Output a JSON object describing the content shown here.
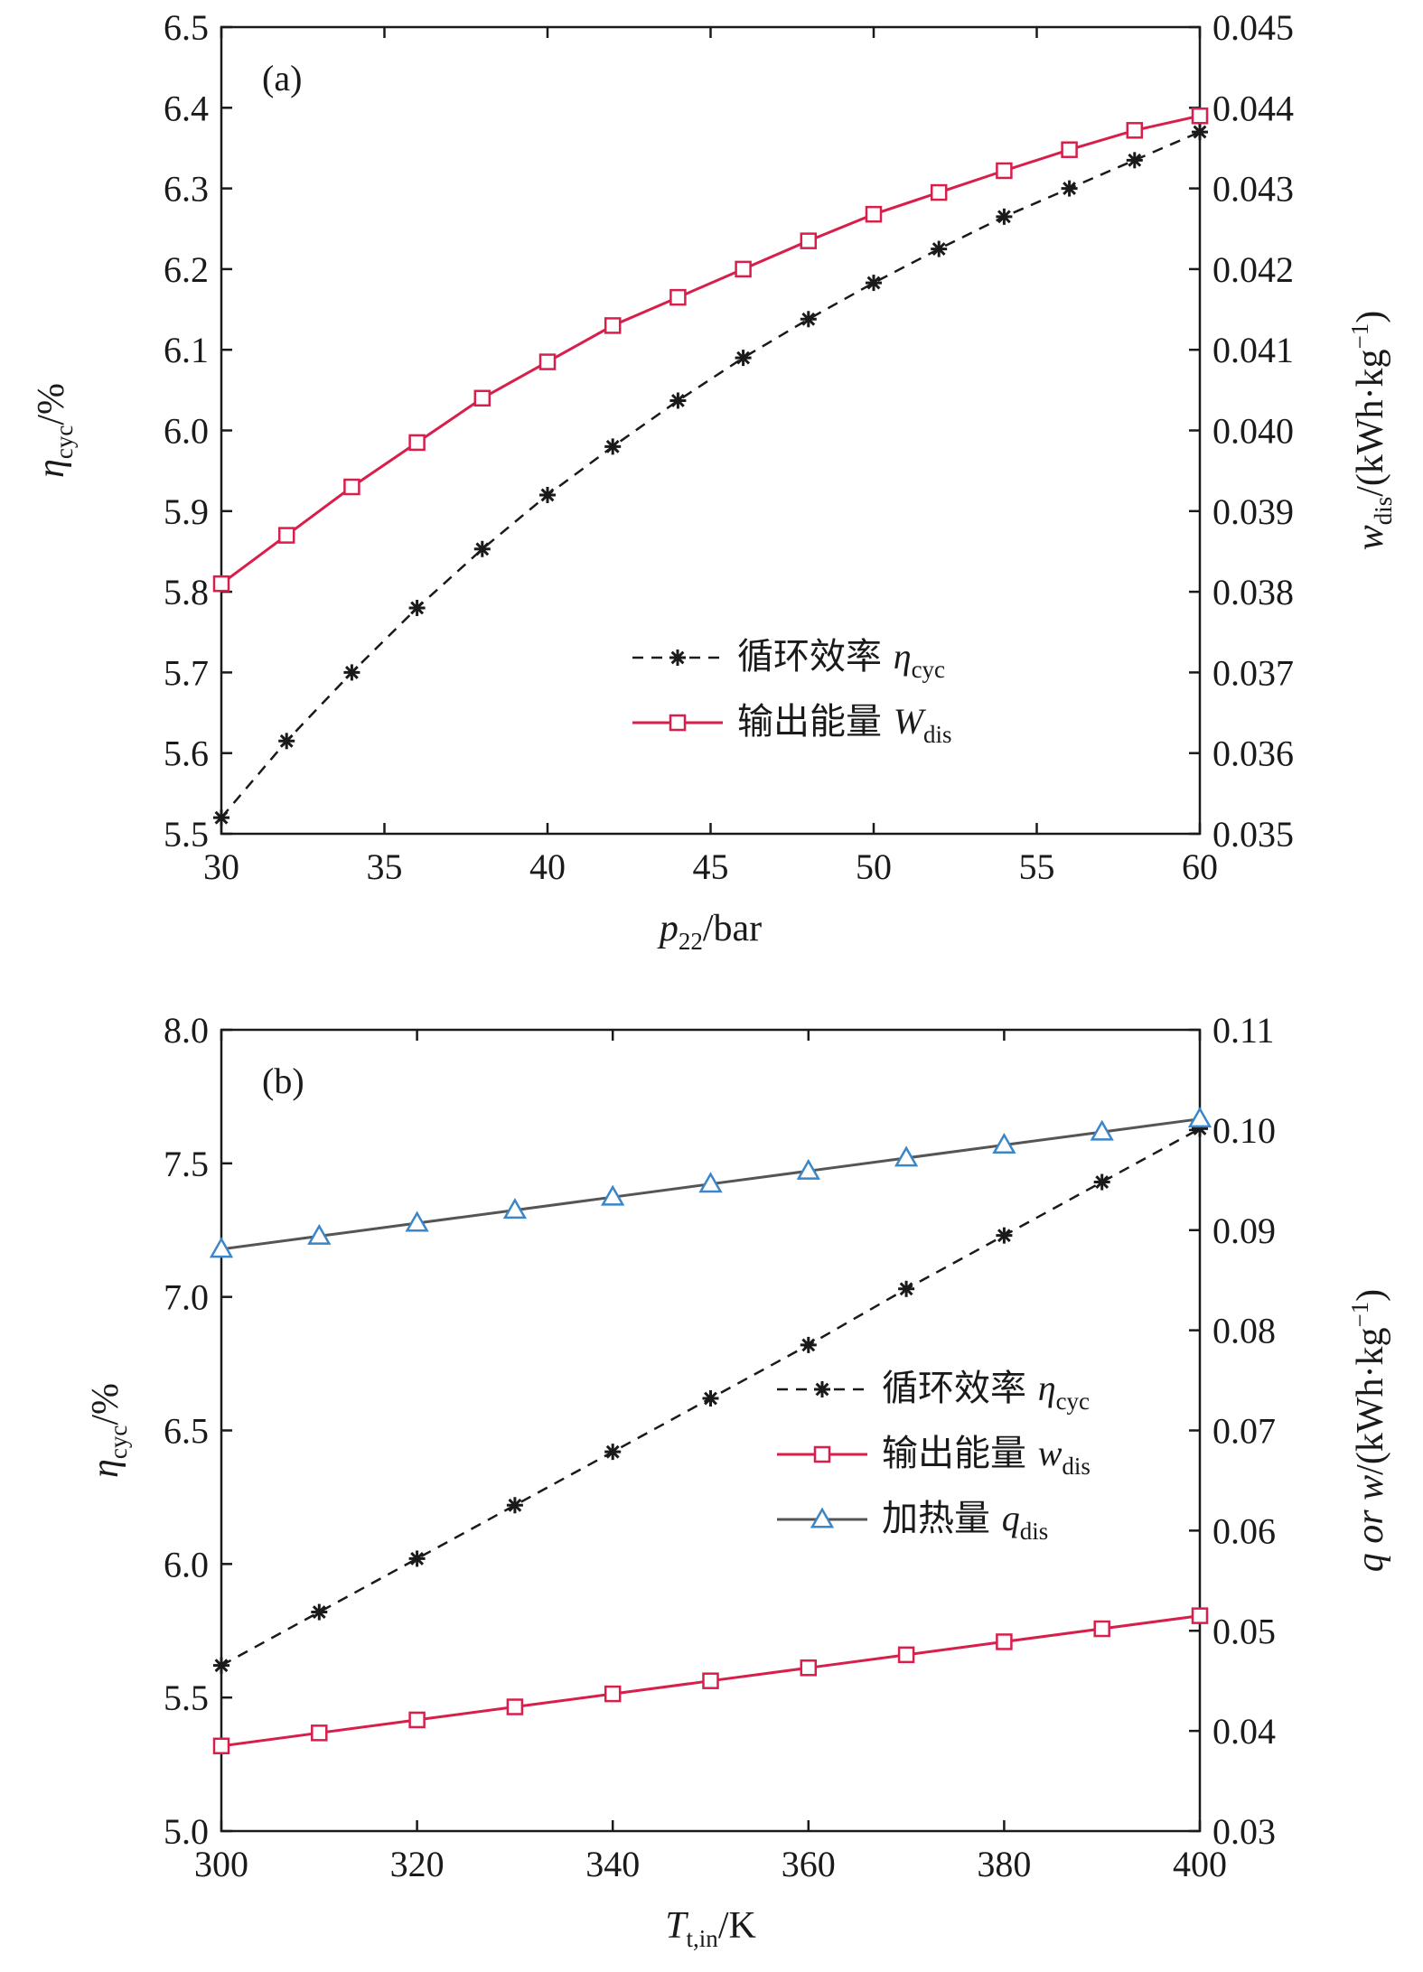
{
  "chart_data": [
    {
      "type": "line",
      "panel_label": "(a)",
      "x_label": {
        "var": "p",
        "sub": "22",
        "unit": "/bar"
      },
      "y_left_label": {
        "var": "η",
        "sub": "cyc",
        "unit": "/%"
      },
      "y_right_label": {
        "var": "w",
        "sub": "dis",
        "unit": "/(kWh·kg",
        "sup": "−1",
        "close": ")"
      },
      "xlim": [
        30,
        60
      ],
      "ylim_left": [
        5.5,
        6.5
      ],
      "ylim_right": [
        0.035,
        0.045
      ],
      "x_ticks": [
        "30",
        "35",
        "40",
        "45",
        "50",
        "55",
        "60"
      ],
      "y_left_ticks": [
        "5.5",
        "5.6",
        "5.7",
        "5.8",
        "5.9",
        "6.0",
        "6.1",
        "6.2",
        "6.3",
        "6.4",
        "6.5"
      ],
      "y_right_ticks": [
        "0.035",
        "0.036",
        "0.037",
        "0.038",
        "0.039",
        "0.040",
        "0.041",
        "0.042",
        "0.043",
        "0.044",
        "0.045"
      ],
      "legend_position": "center-right",
      "series": [
        {
          "legend_text": "循环效率",
          "legend_var": "η",
          "legend_sub": "cyc",
          "axis": "left",
          "marker": "star",
          "line": "dashed",
          "color": "#1a1a1a",
          "x": [
            30,
            32,
            34,
            36,
            38,
            40,
            42,
            44,
            46,
            48,
            50,
            52,
            54,
            56,
            58,
            60
          ],
          "y": [
            5.52,
            5.615,
            5.7,
            5.78,
            5.853,
            5.92,
            5.98,
            6.037,
            6.09,
            6.138,
            6.183,
            6.225,
            6.265,
            6.3,
            6.335,
            6.37
          ]
        },
        {
          "legend_text": "输出能量",
          "legend_var": "W",
          "legend_sub": "dis",
          "axis": "right",
          "marker": "square",
          "line": "solid",
          "color": "#d81e4a",
          "x": [
            30,
            32,
            34,
            36,
            38,
            40,
            42,
            44,
            46,
            48,
            50,
            52,
            54,
            56,
            58,
            60
          ],
          "y": [
            0.0381,
            0.0387,
            0.0393,
            0.03985,
            0.0404,
            0.04085,
            0.0413,
            0.04165,
            0.042,
            0.04235,
            0.04268,
            0.04295,
            0.04322,
            0.04348,
            0.04372,
            0.0439
          ]
        }
      ]
    },
    {
      "type": "line",
      "panel_label": "(b)",
      "x_label": {
        "var": "T",
        "sub": "t,in",
        "unit": "/K"
      },
      "y_left_label": {
        "var": "η",
        "sub": "cyc",
        "unit": "/%"
      },
      "y_right_label": {
        "var": "q or w",
        "sub": "",
        "unit": "/(kWh·kg",
        "sup": "−1",
        "close": ")"
      },
      "xlim": [
        300,
        400
      ],
      "ylim_left": [
        5.0,
        8.0
      ],
      "ylim_right": [
        0.03,
        0.11
      ],
      "x_ticks": [
        "300",
        "320",
        "340",
        "360",
        "380",
        "400"
      ],
      "y_left_ticks": [
        "5.0",
        "5.5",
        "6.0",
        "6.5",
        "7.0",
        "7.5",
        "8.0"
      ],
      "y_right_ticks": [
        "0.03",
        "0.04",
        "0.05",
        "0.06",
        "0.07",
        "0.08",
        "0.09",
        "0.10",
        "0.11"
      ],
      "legend_position": "center-right",
      "series": [
        {
          "legend_text": "循环效率",
          "legend_var": "η",
          "legend_sub": "cyc",
          "axis": "left",
          "marker": "star",
          "line": "dashed",
          "color": "#1a1a1a",
          "x": [
            300,
            310,
            320,
            330,
            340,
            350,
            360,
            370,
            380,
            390,
            400
          ],
          "y": [
            5.62,
            5.82,
            6.02,
            6.22,
            6.42,
            6.62,
            6.82,
            7.03,
            7.23,
            7.43,
            7.63
          ]
        },
        {
          "legend_text": "输出能量",
          "legend_var": "w",
          "legend_sub": "dis",
          "axis": "right",
          "marker": "square",
          "line": "solid",
          "color": "#d81e4a",
          "x": [
            300,
            310,
            320,
            330,
            340,
            350,
            360,
            370,
            380,
            390,
            400
          ],
          "y": [
            0.0385,
            0.0398,
            0.0411,
            0.0424,
            0.0437,
            0.045,
            0.0463,
            0.0476,
            0.0489,
            0.0502,
            0.0515
          ]
        },
        {
          "legend_text": "加热量",
          "legend_var": "q",
          "legend_sub": "dis",
          "axis": "right",
          "marker": "triangle",
          "line": "solid",
          "color": "#555555",
          "marker_color": "#3a86c8",
          "x": [
            300,
            310,
            320,
            330,
            340,
            350,
            360,
            370,
            380,
            390,
            400
          ],
          "y": [
            0.0881,
            0.0894,
            0.0907,
            0.092,
            0.0933,
            0.0946,
            0.0959,
            0.0972,
            0.0985,
            0.0998,
            0.1011
          ]
        }
      ]
    }
  ]
}
